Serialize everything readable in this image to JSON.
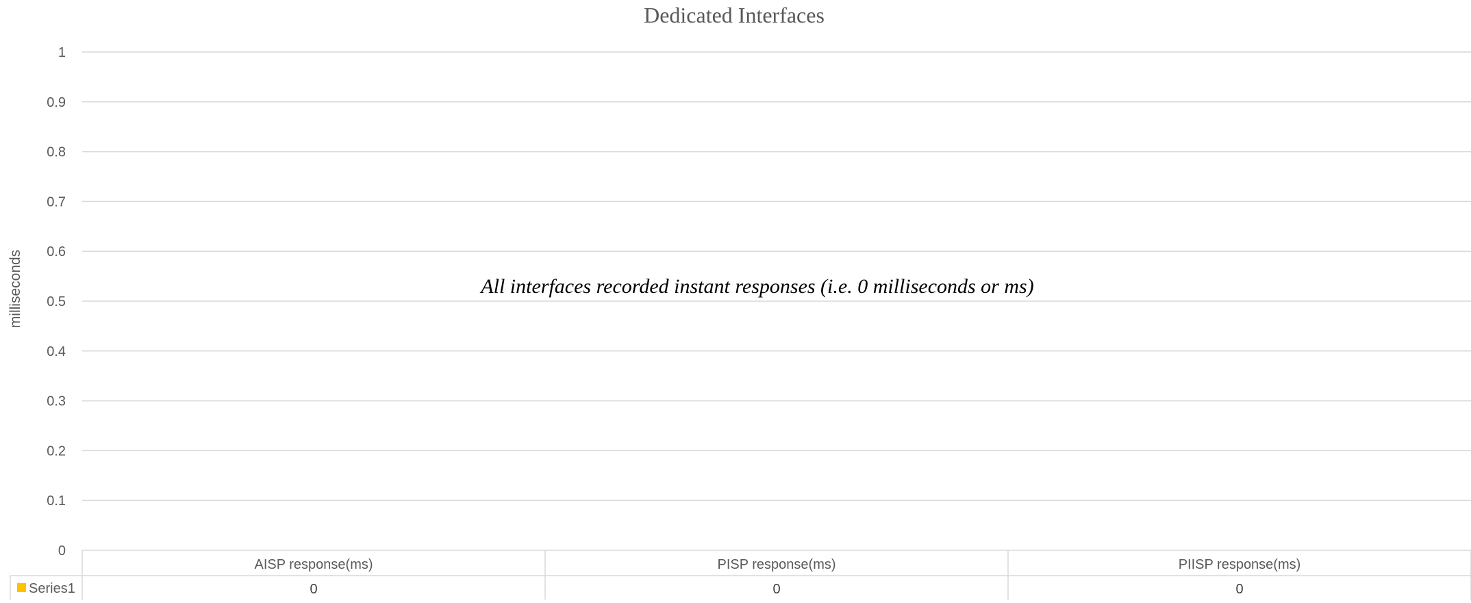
{
  "chart_data": {
    "type": "bar",
    "title": "Dedicated Interfaces",
    "ylabel": "milliseconds",
    "xlabel": "",
    "annotation": "All interfaces recorded instant responses (i.e. 0 milliseconds or ms)",
    "categories": [
      "AISP response(ms)",
      "PISP response(ms)",
      "PIISP response(ms)"
    ],
    "series": [
      {
        "name": "Series1",
        "color": "#FFC000",
        "values": [
          0,
          0,
          0
        ]
      }
    ],
    "ylim": [
      0,
      1
    ],
    "yticks": [
      "0",
      "0.1",
      "0.2",
      "0.3",
      "0.4",
      "0.5",
      "0.6",
      "0.7",
      "0.8",
      "0.9",
      "1"
    ],
    "grid": true,
    "legend": "data-table-left",
    "data_table": true
  }
}
